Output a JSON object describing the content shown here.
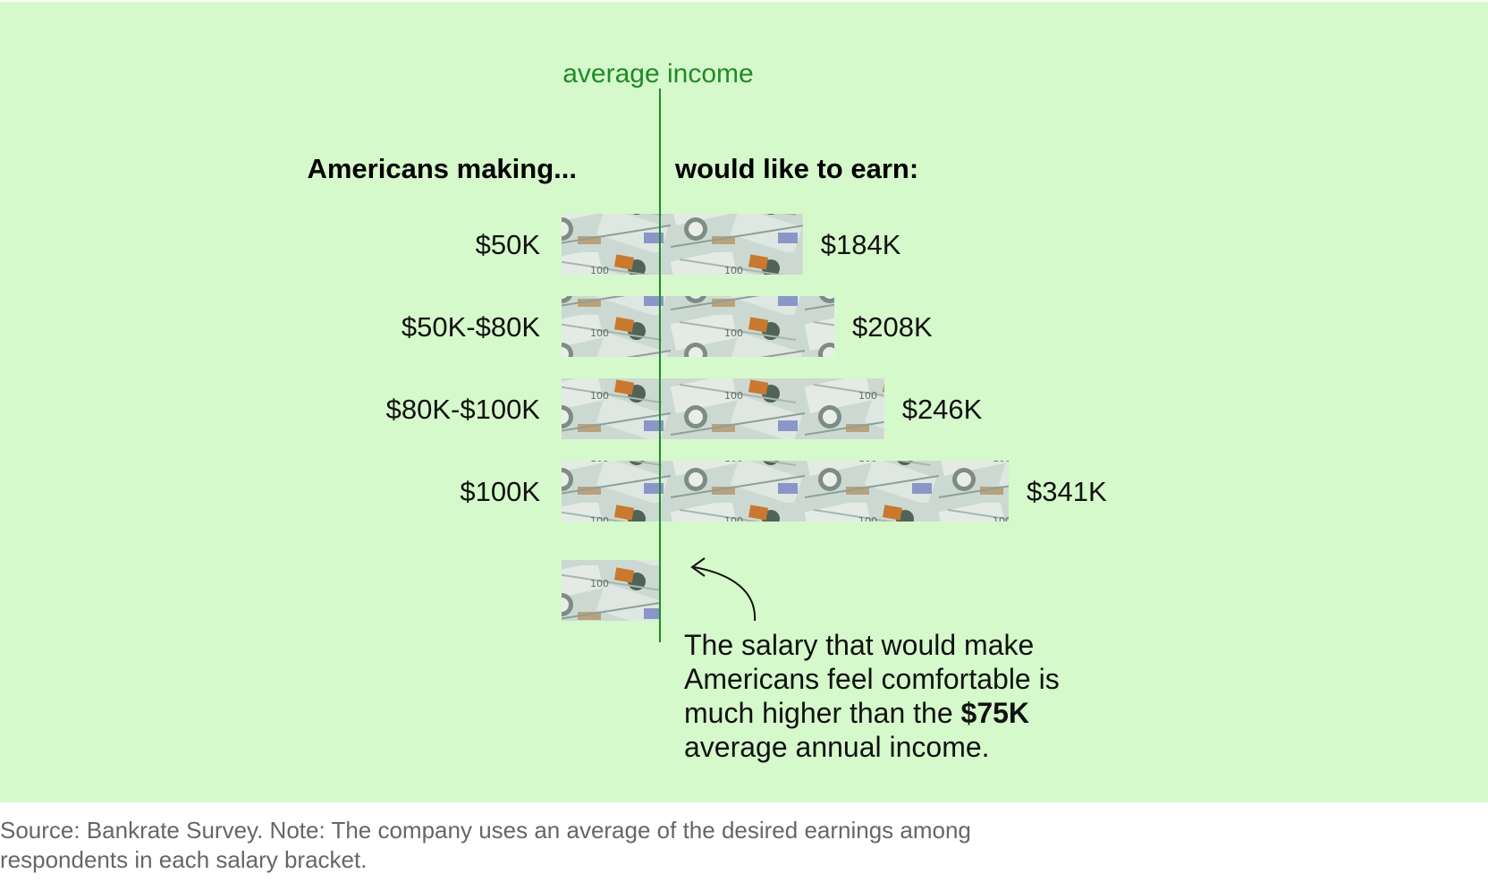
{
  "chart_data": {
    "type": "bar",
    "title": "",
    "header_left": "Americans making...",
    "header_right": "would like to earn:",
    "categories": [
      "$50K",
      "$50K-$80K",
      "$80K-$100K",
      "$100K"
    ],
    "values": [
      184,
      208,
      246,
      341
    ],
    "value_labels": [
      "$184K",
      "$208K",
      "$246K",
      "$341K"
    ],
    "unit": "thousand USD",
    "reference_line": {
      "label": "average income",
      "value": 75
    },
    "reference_bar_value": 75,
    "xlim": [
      0,
      341
    ]
  },
  "annotation": {
    "text_before": "The salary that would make Americans feel comfortable is much higher than the ",
    "bold": "$75K",
    "text_after": " average annual income."
  },
  "source": "Source: Bankrate Survey. Note: The company uses an average of the desired earnings among respondents in each salary bracket.",
  "colors": {
    "panel_bg": "#d6f9cb",
    "reference_line": "#1f8a2a",
    "bill_base": "#c9d6cf",
    "bill_ink": "#5d6f68",
    "bill_accent": "#c9782e"
  }
}
